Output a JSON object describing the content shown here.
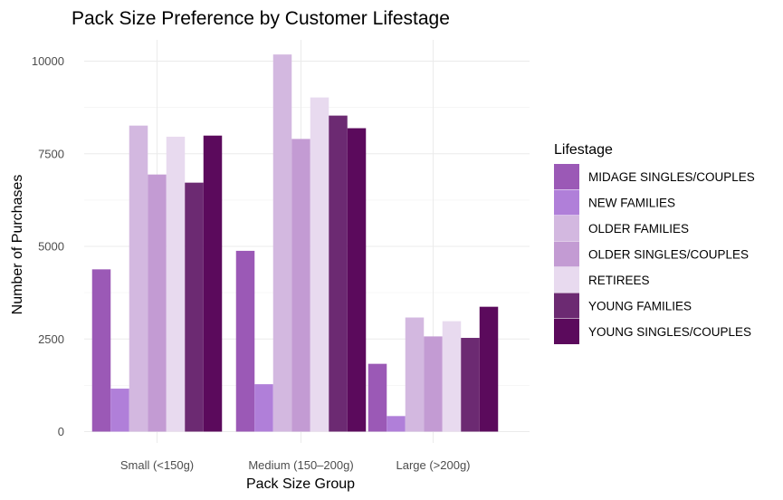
{
  "chart_data": {
    "type": "bar",
    "title": "Pack Size Preference by Customer Lifestage",
    "xlabel": "Pack Size Group",
    "ylabel": "Number of Purchases",
    "ylim": [
      0,
      10400
    ],
    "yticks": [
      0,
      2500,
      5000,
      7500,
      10000
    ],
    "ytick_labels": [
      "0",
      "2500",
      "5000",
      "7500",
      "10000"
    ],
    "grid": true,
    "legend_title": "Lifestage",
    "legend_position": "right",
    "categories": [
      "Small (<150g)",
      "Medium (150–200g)",
      "Large (>200g)"
    ],
    "series": [
      {
        "name": "MIDAGE SINGLES/COUPLES",
        "color": "#9b59b6",
        "values": [
          4380,
          4880,
          1830
        ]
      },
      {
        "name": "NEW FAMILIES",
        "color": "#b07fd9",
        "values": [
          1160,
          1280,
          420
        ]
      },
      {
        "name": "OLDER FAMILIES",
        "color": "#d3b8e0",
        "values": [
          8260,
          10180,
          3080
        ]
      },
      {
        "name": "OLDER SINGLES/COUPLES",
        "color": "#c39bd3",
        "values": [
          6940,
          7900,
          2570
        ]
      },
      {
        "name": "RETIREES",
        "color": "#e8daef",
        "values": [
          7960,
          9020,
          2980
        ]
      },
      {
        "name": "YOUNG FAMILIES",
        "color": "#6c2a72",
        "values": [
          6720,
          8530,
          2530
        ]
      },
      {
        "name": "YOUNG SINGLES/COUPLES",
        "color": "#5b0a5c",
        "values": [
          7990,
          8190,
          3370
        ]
      }
    ]
  }
}
